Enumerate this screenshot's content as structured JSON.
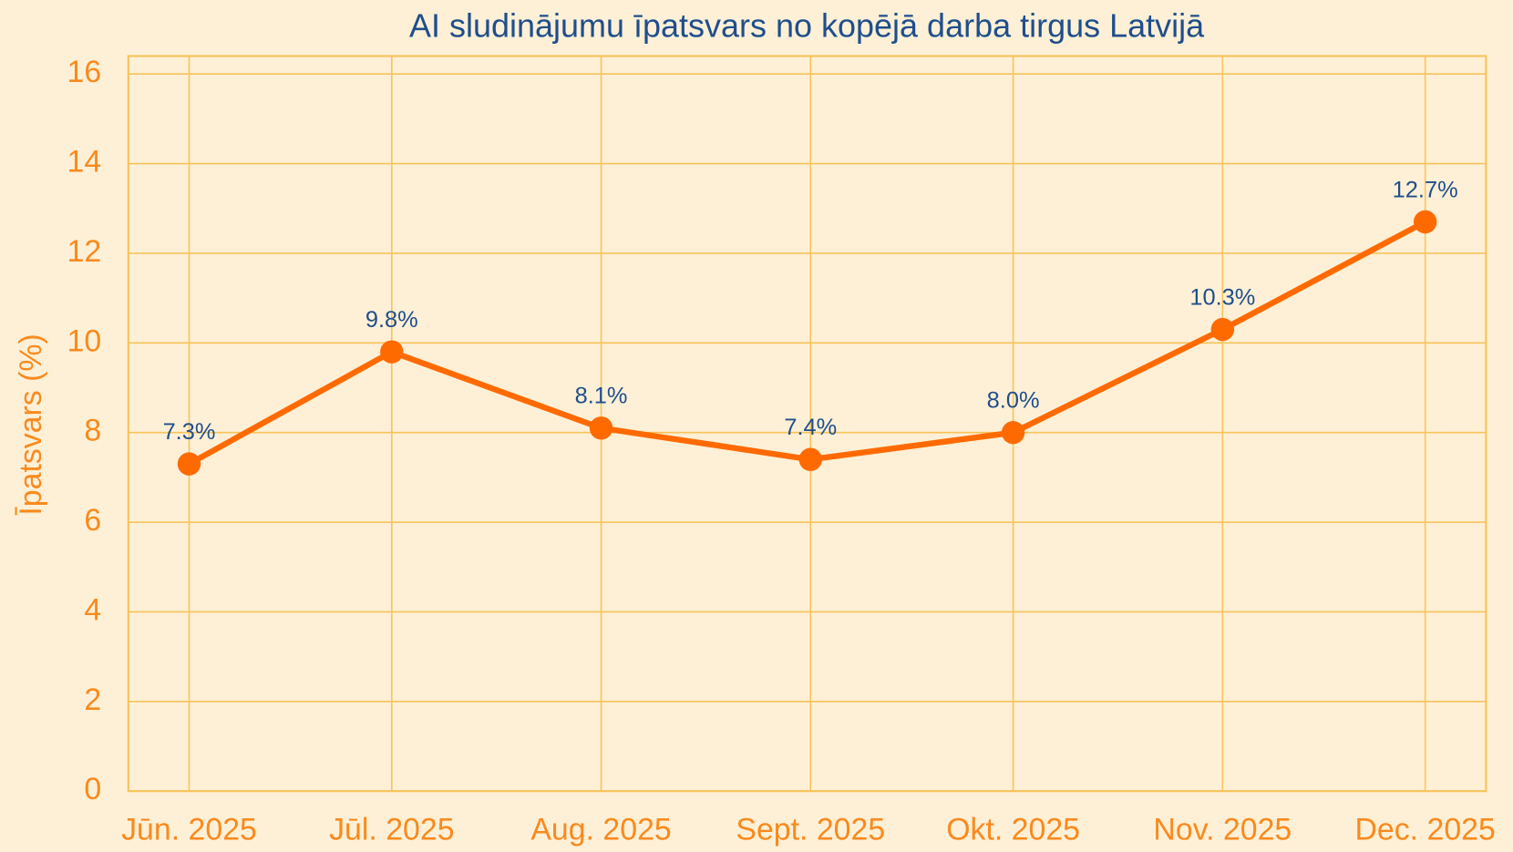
{
  "chart_data": {
    "type": "line",
    "title": "AI sludinājumu īpatsvars no kopējā darba tirgus Latvijā",
    "ylabel": "Īpatsvars (%)",
    "x": [
      "2025-06",
      "2025-07",
      "2025-08",
      "2025-09",
      "2025-10",
      "2025-11",
      "2025-12"
    ],
    "xticks": [
      {
        "value": "2025-06",
        "label": "Jūn. 2025"
      },
      {
        "value": "2025-07",
        "label": "Jūl. 2025"
      },
      {
        "value": "2025-08",
        "label": "Aug. 2025"
      },
      {
        "value": "2025-09",
        "label": "Sept. 2025"
      },
      {
        "value": "2025-10",
        "label": "Okt. 2025"
      },
      {
        "value": "2025-11",
        "label": "Nov. 2025"
      },
      {
        "value": "2025-12",
        "label": "Dec. 2025"
      }
    ],
    "xlim": [
      "2025-05-23",
      "2025-12-10"
    ],
    "series": [
      {
        "name": "AI sludinājumu īpatsvars",
        "color": "#ff6a00",
        "values": [
          7.3,
          9.8,
          8.1,
          7.4,
          8.0,
          10.3,
          12.7
        ],
        "value_labels": [
          "7.3%",
          "9.8%",
          "8.1%",
          "7.4%",
          "8.0%",
          "10.3%",
          "12.7%"
        ]
      }
    ],
    "ylim": [
      0,
      16.4
    ],
    "yticks": [
      0,
      2,
      4,
      6,
      8,
      10,
      12,
      14,
      16
    ],
    "grid": true
  }
}
